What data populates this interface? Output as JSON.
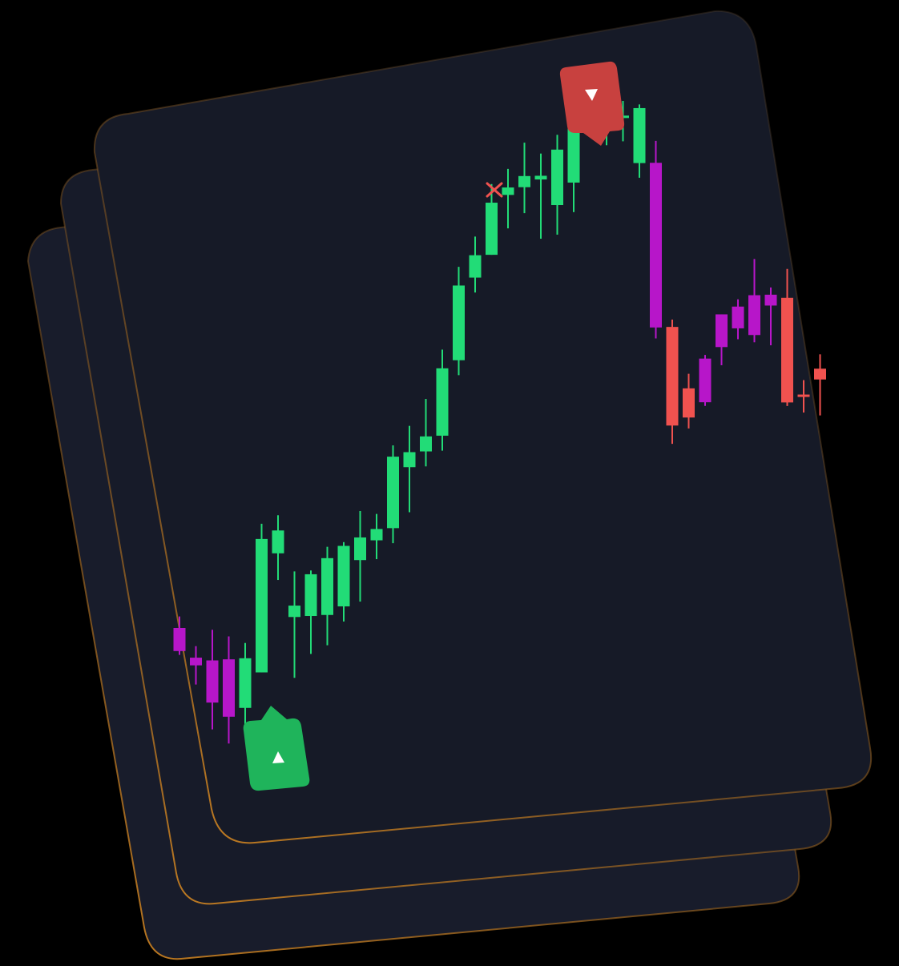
{
  "theme": {
    "page_bg": "#000000",
    "card_bg": "#161a27",
    "card_border": "#c47a1e",
    "bull_color": "#22dc77",
    "bear_color": "#f0524f",
    "weak_color": "#b716c9",
    "buy_marker_color": "#1fb45b",
    "sell_marker_color": "#c8413f",
    "cross_color": "#f0524f"
  },
  "markers": {
    "buy": {
      "icon": "triangle-up-icon",
      "bar_index": 4
    },
    "sell": {
      "icon": "triangle-down-icon",
      "bar_index": 29
    },
    "cross": {
      "icon": "close-icon",
      "bar_index": 21
    }
  },
  "chart_data": {
    "type": "candlestick",
    "title": "",
    "xlabel": "",
    "ylabel": "",
    "ylim": [
      0,
      100
    ],
    "grid": false,
    "series": [
      {
        "candles": [
          {
            "o": 22.5,
            "h": 24.0,
            "l": 19.0,
            "c": 19.5,
            "color": "weak"
          },
          {
            "o": 18.5,
            "h": 20.0,
            "l": 15.0,
            "c": 17.5,
            "color": "weak"
          },
          {
            "o": 18.0,
            "h": 22.0,
            "l": 9.0,
            "c": 12.5,
            "color": "weak"
          },
          {
            "o": 18.0,
            "h": 21.0,
            "l": 7.0,
            "c": 10.5,
            "color": "weak"
          },
          {
            "o": 11.5,
            "h": 20.0,
            "l": 8.0,
            "c": 18.0,
            "color": "bull"
          },
          {
            "o": 16.0,
            "h": 35.5,
            "l": 16.0,
            "c": 33.5,
            "color": "bull"
          },
          {
            "o": 31.5,
            "h": 36.5,
            "l": 28.0,
            "c": 34.5,
            "color": "bull"
          },
          {
            "o": 23.0,
            "h": 29.0,
            "l": 15.0,
            "c": 24.5,
            "color": "bull"
          },
          {
            "o": 23.0,
            "h": 29.0,
            "l": 18.0,
            "c": 28.5,
            "color": "bull"
          },
          {
            "o": 23.0,
            "h": 32.0,
            "l": 19.0,
            "c": 30.5,
            "color": "bull"
          },
          {
            "o": 24.0,
            "h": 32.5,
            "l": 22.0,
            "c": 32.0,
            "color": "bull"
          },
          {
            "o": 30.0,
            "h": 36.5,
            "l": 24.5,
            "c": 33.0,
            "color": "bull"
          },
          {
            "o": 32.5,
            "h": 36.0,
            "l": 30.0,
            "c": 34.0,
            "color": "bull"
          },
          {
            "o": 34.0,
            "h": 45.0,
            "l": 32.0,
            "c": 43.5,
            "color": "bull"
          },
          {
            "o": 42.0,
            "h": 47.5,
            "l": 36.0,
            "c": 44.0,
            "color": "bull"
          },
          {
            "o": 44.0,
            "h": 51.0,
            "l": 42.0,
            "c": 46.0,
            "color": "bull"
          },
          {
            "o": 46.0,
            "h": 57.5,
            "l": 44.0,
            "c": 55.0,
            "color": "bull"
          },
          {
            "o": 56.0,
            "h": 68.5,
            "l": 54.0,
            "c": 66.0,
            "color": "bull"
          },
          {
            "o": 67.0,
            "h": 72.5,
            "l": 65.0,
            "c": 70.0,
            "color": "bull"
          },
          {
            "o": 70.0,
            "h": 79.5,
            "l": 70.0,
            "c": 77.0,
            "color": "bull"
          },
          {
            "o": 78.0,
            "h": 81.5,
            "l": 73.5,
            "c": 79.0,
            "color": "bull"
          },
          {
            "o": 79.0,
            "h": 85.0,
            "l": 75.5,
            "c": 80.5,
            "color": "bull"
          },
          {
            "o": 80.0,
            "h": 83.5,
            "l": 72.0,
            "c": 80.5,
            "color": "bull"
          },
          {
            "o": 76.5,
            "h": 86.0,
            "l": 72.5,
            "c": 84.0,
            "color": "bull"
          },
          {
            "o": 79.5,
            "h": 89.0,
            "l": 75.5,
            "c": 88.0,
            "color": "bull"
          },
          {
            "o": 88.0,
            "h": 90.0,
            "l": 86.0,
            "c": 89.0,
            "color": "bull"
          },
          {
            "o": 87.5,
            "h": 90.0,
            "l": 84.5,
            "c": 89.5,
            "color": "bull"
          },
          {
            "o": 88.5,
            "h": 90.5,
            "l": 85.0,
            "c": 88.5,
            "color": "bull"
          },
          {
            "o": 82.0,
            "h": 90.0,
            "l": 80.0,
            "c": 89.5,
            "color": "bull"
          },
          {
            "o": 82.0,
            "h": 85.0,
            "l": 58.0,
            "c": 59.5,
            "color": "weak"
          },
          {
            "o": 59.5,
            "h": 60.5,
            "l": 43.5,
            "c": 46.0,
            "color": "bear"
          },
          {
            "o": 51.0,
            "h": 53.0,
            "l": 45.5,
            "c": 47.0,
            "color": "bear"
          },
          {
            "o": 49.0,
            "h": 55.5,
            "l": 48.5,
            "c": 55.0,
            "color": "weak"
          },
          {
            "o": 56.5,
            "h": 61.0,
            "l": 54.0,
            "c": 61.0,
            "color": "weak"
          },
          {
            "o": 59.0,
            "h": 63.0,
            "l": 57.5,
            "c": 62.0,
            "color": "weak"
          },
          {
            "o": 58.0,
            "h": 68.5,
            "l": 57.0,
            "c": 63.5,
            "color": "weak"
          },
          {
            "o": 62.0,
            "h": 64.5,
            "l": 56.5,
            "c": 63.5,
            "color": "weak"
          },
          {
            "o": 63.0,
            "h": 67.0,
            "l": 48.0,
            "c": 48.5,
            "color": "bear"
          },
          {
            "o": 49.5,
            "h": 51.5,
            "l": 47.0,
            "c": 49.5,
            "color": "bear"
          },
          {
            "o": 51.5,
            "h": 55.0,
            "l": 46.5,
            "c": 53.0,
            "color": "bear"
          }
        ]
      }
    ]
  }
}
